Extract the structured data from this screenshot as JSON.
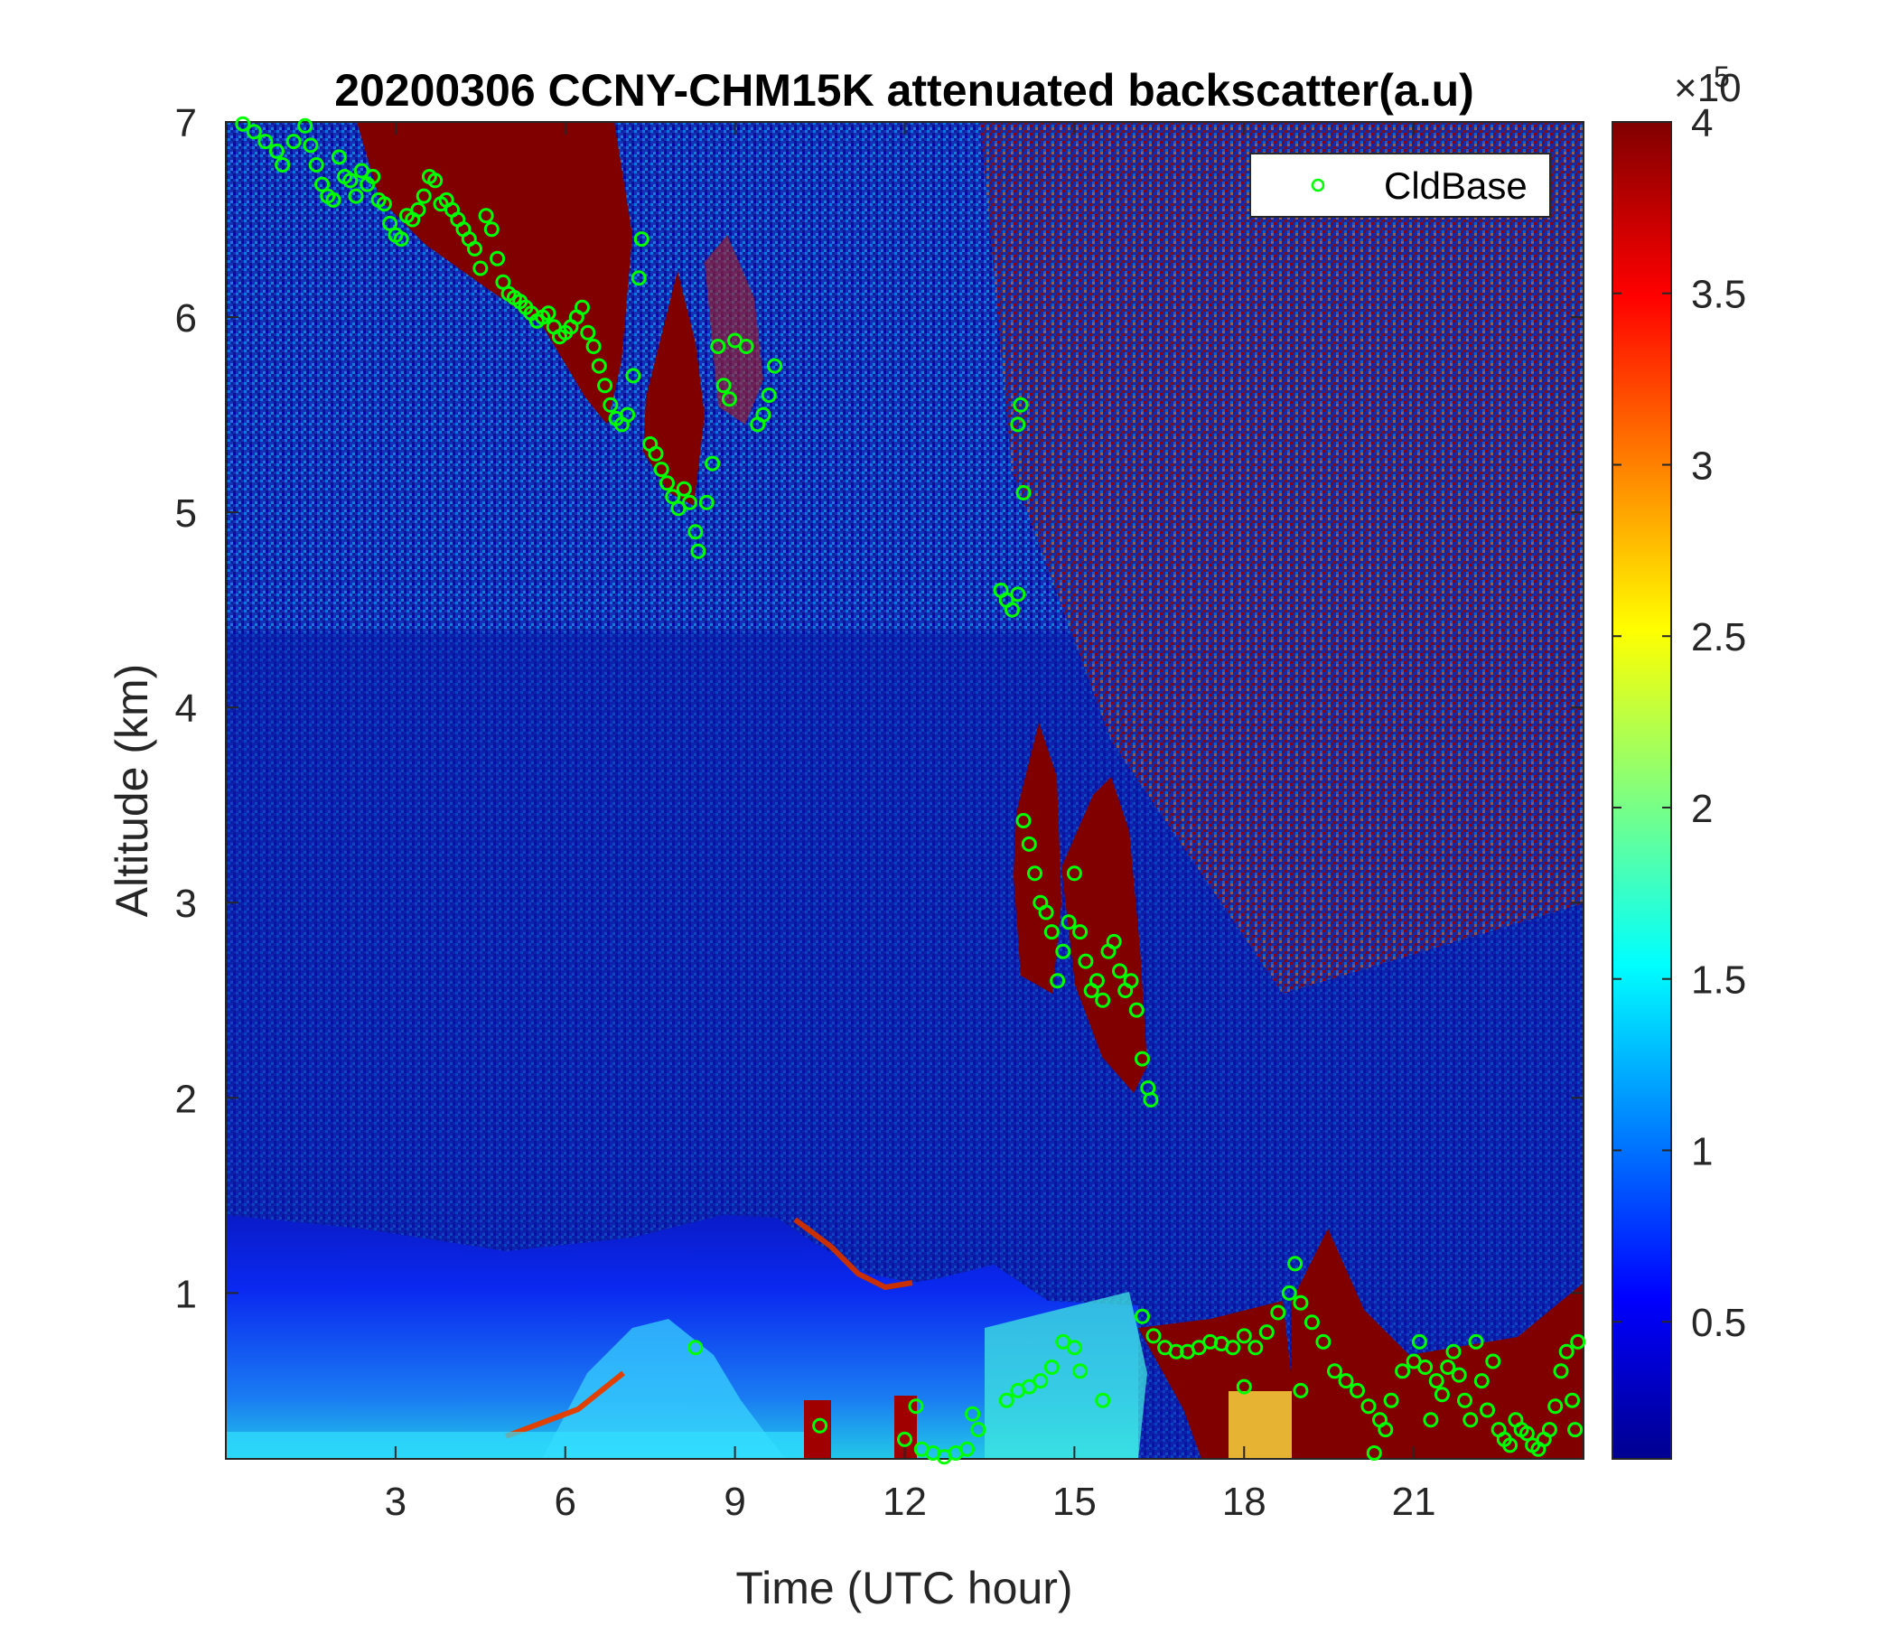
{
  "chart_data": {
    "type": "heatmap",
    "title": "20200306 CCNY-CHM15K attenuated backscatter(a.u)",
    "xlabel": "Time (UTC hour)",
    "ylabel": "Altitude (km)",
    "xlim": [
      0,
      24
    ],
    "ylim": [
      0.15,
      7
    ],
    "x_ticks": [
      3,
      6,
      9,
      12,
      15,
      18,
      21
    ],
    "y_ticks": [
      1,
      2,
      3,
      4,
      5,
      6,
      7
    ],
    "colormap": "jet",
    "colorbar": {
      "range": [
        0.1,
        4
      ],
      "ticks": [
        0.5,
        1,
        1.5,
        2,
        2.5,
        3,
        3.5,
        4
      ],
      "exponent_label": "×10",
      "exponent": "5"
    },
    "legend": {
      "entries": [
        "CldBase"
      ],
      "placement": "top-right"
    },
    "series": [
      {
        "name": "CldBase",
        "marker": "circle",
        "color": "#00ff00",
        "points": [
          [
            0.3,
            6.99
          ],
          [
            0.5,
            6.95
          ],
          [
            0.7,
            6.9
          ],
          [
            0.9,
            6.85
          ],
          [
            1.0,
            6.78
          ],
          [
            1.2,
            6.9
          ],
          [
            1.4,
            6.98
          ],
          [
            1.5,
            6.88
          ],
          [
            1.6,
            6.78
          ],
          [
            1.7,
            6.68
          ],
          [
            1.8,
            6.62
          ],
          [
            1.9,
            6.6
          ],
          [
            2.0,
            6.82
          ],
          [
            2.1,
            6.72
          ],
          [
            2.2,
            6.7
          ],
          [
            2.3,
            6.62
          ],
          [
            2.4,
            6.75
          ],
          [
            2.5,
            6.68
          ],
          [
            2.6,
            6.72
          ],
          [
            2.7,
            6.6
          ],
          [
            2.8,
            6.58
          ],
          [
            2.9,
            6.48
          ],
          [
            3.0,
            6.42
          ],
          [
            3.1,
            6.4
          ],
          [
            3.2,
            6.52
          ],
          [
            3.3,
            6.5
          ],
          [
            3.4,
            6.55
          ],
          [
            3.5,
            6.62
          ],
          [
            3.6,
            6.72
          ],
          [
            3.7,
            6.7
          ],
          [
            3.8,
            6.58
          ],
          [
            3.9,
            6.6
          ],
          [
            4.0,
            6.55
          ],
          [
            4.1,
            6.5
          ],
          [
            4.2,
            6.45
          ],
          [
            4.3,
            6.4
          ],
          [
            4.4,
            6.35
          ],
          [
            4.5,
            6.25
          ],
          [
            4.6,
            6.52
          ],
          [
            4.7,
            6.45
          ],
          [
            4.8,
            6.3
          ],
          [
            4.9,
            6.18
          ],
          [
            5.0,
            6.12
          ],
          [
            5.1,
            6.1
          ],
          [
            5.2,
            6.08
          ],
          [
            5.3,
            6.05
          ],
          [
            5.4,
            6.02
          ],
          [
            5.5,
            5.98
          ],
          [
            5.6,
            6.0
          ],
          [
            5.7,
            6.02
          ],
          [
            5.8,
            5.95
          ],
          [
            5.9,
            5.9
          ],
          [
            6.0,
            5.92
          ],
          [
            6.1,
            5.95
          ],
          [
            6.2,
            6.0
          ],
          [
            6.3,
            6.05
          ],
          [
            6.4,
            5.92
          ],
          [
            6.5,
            5.85
          ],
          [
            6.6,
            5.75
          ],
          [
            6.7,
            5.65
          ],
          [
            6.8,
            5.55
          ],
          [
            6.9,
            5.48
          ],
          [
            7.0,
            5.45
          ],
          [
            7.1,
            5.5
          ],
          [
            7.2,
            5.7
          ],
          [
            7.3,
            6.2
          ],
          [
            7.35,
            6.4
          ],
          [
            7.5,
            5.35
          ],
          [
            7.6,
            5.3
          ],
          [
            7.7,
            5.22
          ],
          [
            7.8,
            5.15
          ],
          [
            7.9,
            5.08
          ],
          [
            8.0,
            5.02
          ],
          [
            8.1,
            5.12
          ],
          [
            8.2,
            5.05
          ],
          [
            8.3,
            4.9
          ],
          [
            8.35,
            4.8
          ],
          [
            8.5,
            5.05
          ],
          [
            8.6,
            5.25
          ],
          [
            8.7,
            5.85
          ],
          [
            8.8,
            5.65
          ],
          [
            8.9,
            5.58
          ],
          [
            9.0,
            5.88
          ],
          [
            9.2,
            5.85
          ],
          [
            9.4,
            5.45
          ],
          [
            9.5,
            5.5
          ],
          [
            9.6,
            5.6
          ],
          [
            9.7,
            5.75
          ],
          [
            8.3,
            0.72
          ],
          [
            10.5,
            0.32
          ],
          [
            12.2,
            0.42
          ],
          [
            12.0,
            0.25
          ],
          [
            12.3,
            0.2
          ],
          [
            12.5,
            0.18
          ],
          [
            12.7,
            0.16
          ],
          [
            12.9,
            0.18
          ],
          [
            13.1,
            0.2
          ],
          [
            13.3,
            0.3
          ],
          [
            13.2,
            0.38
          ],
          [
            13.7,
            4.6
          ],
          [
            13.8,
            4.55
          ],
          [
            13.9,
            4.5
          ],
          [
            14.0,
            4.58
          ],
          [
            14.0,
            5.45
          ],
          [
            14.05,
            5.55
          ],
          [
            14.1,
            5.1
          ],
          [
            13.8,
            0.45
          ],
          [
            14.0,
            0.5
          ],
          [
            14.2,
            0.52
          ],
          [
            14.4,
            0.55
          ],
          [
            14.6,
            0.62
          ],
          [
            14.8,
            0.75
          ],
          [
            15.0,
            0.72
          ],
          [
            15.1,
            0.6
          ],
          [
            15.5,
            0.45
          ],
          [
            14.1,
            3.42
          ],
          [
            14.2,
            3.3
          ],
          [
            14.3,
            3.15
          ],
          [
            14.4,
            3.0
          ],
          [
            14.5,
            2.95
          ],
          [
            14.6,
            2.85
          ],
          [
            14.7,
            2.6
          ],
          [
            14.8,
            2.75
          ],
          [
            14.9,
            2.9
          ],
          [
            15.0,
            3.15
          ],
          [
            15.1,
            2.85
          ],
          [
            15.2,
            2.7
          ],
          [
            15.3,
            2.55
          ],
          [
            15.4,
            2.6
          ],
          [
            15.5,
            2.5
          ],
          [
            15.6,
            2.75
          ],
          [
            15.7,
            2.8
          ],
          [
            15.8,
            2.65
          ],
          [
            15.9,
            2.55
          ],
          [
            16.0,
            2.6
          ],
          [
            16.1,
            2.45
          ],
          [
            16.2,
            2.2
          ],
          [
            16.3,
            2.05
          ],
          [
            16.35,
            1.99
          ],
          [
            16.2,
            0.88
          ],
          [
            16.4,
            0.78
          ],
          [
            16.6,
            0.72
          ],
          [
            16.8,
            0.7
          ],
          [
            17.0,
            0.7
          ],
          [
            17.2,
            0.72
          ],
          [
            17.4,
            0.75
          ],
          [
            17.6,
            0.74
          ],
          [
            17.8,
            0.72
          ],
          [
            18.0,
            0.78
          ],
          [
            18.2,
            0.72
          ],
          [
            18.4,
            0.8
          ],
          [
            18.6,
            0.9
          ],
          [
            18.8,
            1.0
          ],
          [
            18.9,
            1.15
          ],
          [
            19.0,
            0.95
          ],
          [
            19.2,
            0.85
          ],
          [
            19.4,
            0.75
          ],
          [
            19.6,
            0.6
          ],
          [
            19.8,
            0.55
          ],
          [
            20.0,
            0.5
          ],
          [
            20.2,
            0.42
          ],
          [
            20.4,
            0.35
          ],
          [
            20.5,
            0.3
          ],
          [
            20.6,
            0.45
          ],
          [
            20.8,
            0.6
          ],
          [
            21.0,
            0.65
          ],
          [
            21.1,
            0.75
          ],
          [
            21.2,
            0.62
          ],
          [
            21.4,
            0.55
          ],
          [
            21.5,
            0.48
          ],
          [
            21.6,
            0.62
          ],
          [
            21.7,
            0.7
          ],
          [
            21.8,
            0.58
          ],
          [
            21.9,
            0.45
          ],
          [
            22.0,
            0.35
          ],
          [
            22.1,
            0.75
          ],
          [
            22.2,
            0.55
          ],
          [
            22.3,
            0.4
          ],
          [
            22.4,
            0.65
          ],
          [
            22.5,
            0.3
          ],
          [
            22.6,
            0.25
          ],
          [
            22.7,
            0.22
          ],
          [
            22.8,
            0.35
          ],
          [
            22.9,
            0.3
          ],
          [
            23.0,
            0.28
          ],
          [
            23.1,
            0.22
          ],
          [
            23.2,
            0.2
          ],
          [
            23.3,
            0.25
          ],
          [
            23.4,
            0.3
          ],
          [
            23.5,
            0.42
          ],
          [
            23.6,
            0.6
          ],
          [
            23.7,
            0.7
          ],
          [
            23.8,
            0.45
          ],
          [
            23.85,
            0.3
          ],
          [
            23.9,
            0.75
          ],
          [
            20.3,
            0.18
          ],
          [
            19.0,
            0.5
          ],
          [
            18.0,
            0.52
          ],
          [
            21.3,
            0.35
          ]
        ]
      }
    ]
  }
}
